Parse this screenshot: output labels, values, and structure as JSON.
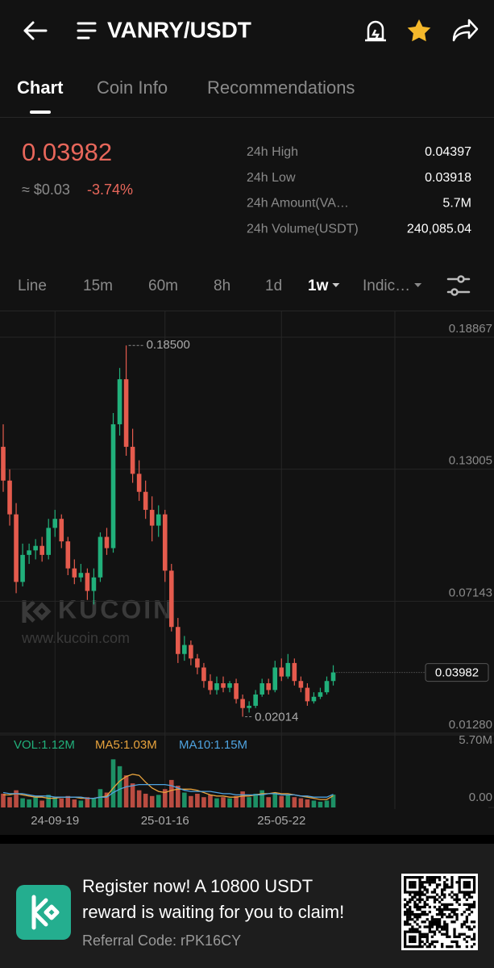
{
  "header": {
    "title": "VANRY/USDT"
  },
  "tabs": [
    "Chart",
    "Coin Info",
    "Recommendations"
  ],
  "price": {
    "last": 0.03982,
    "fiat": "≈ $0.03",
    "change": "-3.74%"
  },
  "stats": [
    {
      "label": "24h High",
      "value": "0.04397"
    },
    {
      "label": "24h Low",
      "value": "0.03918"
    },
    {
      "label": "24h Amount(VA…",
      "value": "5.7M"
    },
    {
      "label": "24h Volume(USDT)",
      "value": "240,085.04"
    }
  ],
  "timeframes": [
    "Line",
    "15m",
    "60m",
    "8h",
    "1d",
    "1w",
    "Indic…"
  ],
  "chart": {
    "type": "candlestick",
    "ylim": [
      0.0128,
      0.18867
    ],
    "yticks": [
      {
        "value": 0.0128,
        "label": "0.01280"
      },
      0.07143,
      0.13005,
      0.18867
    ],
    "xticks": [
      {
        "value": 8,
        "label": "24-09-19"
      },
      {
        "value": 25,
        "label": "25-01-16"
      },
      {
        "value": 43,
        "label": "25-05-22"
      }
    ],
    "up_color": "#21b07b",
    "down_color": "#e55b4d",
    "candles": [
      [
        0.14,
        0.15,
        0.12,
        0.125
      ],
      [
        0.125,
        0.13,
        0.105,
        0.11
      ],
      [
        0.11,
        0.115,
        0.075,
        0.08
      ],
      [
        0.08,
        0.097,
        0.078,
        0.092
      ],
      [
        0.092,
        0.097,
        0.088,
        0.094
      ],
      [
        0.094,
        0.099,
        0.09,
        0.096
      ],
      [
        0.096,
        0.1,
        0.089,
        0.092
      ],
      [
        0.092,
        0.108,
        0.09,
        0.104
      ],
      [
        0.104,
        0.112,
        0.1,
        0.108
      ],
      [
        0.108,
        0.11,
        0.095,
        0.098
      ],
      [
        0.098,
        0.1,
        0.083,
        0.086
      ],
      [
        0.086,
        0.09,
        0.079,
        0.082
      ],
      [
        0.082,
        0.088,
        0.08,
        0.084
      ],
      [
        0.084,
        0.086,
        0.072,
        0.076
      ],
      [
        0.076,
        0.086,
        0.07,
        0.082
      ],
      [
        0.082,
        0.102,
        0.08,
        0.1
      ],
      [
        0.1,
        0.104,
        0.092,
        0.095
      ],
      [
        0.095,
        0.155,
        0.093,
        0.15
      ],
      [
        0.15,
        0.175,
        0.145,
        0.17
      ],
      [
        0.17,
        0.185,
        0.136,
        0.14
      ],
      [
        0.14,
        0.148,
        0.124,
        0.128
      ],
      [
        0.128,
        0.134,
        0.116,
        0.12
      ],
      [
        0.12,
        0.125,
        0.108,
        0.112
      ],
      [
        0.112,
        0.118,
        0.098,
        0.105
      ],
      [
        0.105,
        0.114,
        0.1,
        0.11
      ],
      [
        0.11,
        0.112,
        0.08,
        0.085
      ],
      [
        0.085,
        0.088,
        0.058,
        0.06
      ],
      [
        0.06,
        0.064,
        0.044,
        0.048
      ],
      [
        0.048,
        0.056,
        0.045,
        0.052
      ],
      [
        0.052,
        0.054,
        0.043,
        0.046
      ],
      [
        0.046,
        0.048,
        0.039,
        0.042
      ],
      [
        0.042,
        0.044,
        0.033,
        0.036
      ],
      [
        0.036,
        0.039,
        0.03,
        0.032
      ],
      [
        0.032,
        0.038,
        0.03,
        0.035
      ],
      [
        0.035,
        0.038,
        0.031,
        0.033
      ],
      [
        0.033,
        0.036,
        0.031,
        0.035
      ],
      [
        0.035,
        0.037,
        0.026,
        0.028
      ],
      [
        0.028,
        0.03,
        0.02014,
        0.024
      ],
      [
        0.024,
        0.027,
        0.022,
        0.025
      ],
      [
        0.025,
        0.032,
        0.024,
        0.03
      ],
      [
        0.03,
        0.037,
        0.029,
        0.035
      ],
      [
        0.035,
        0.037,
        0.03,
        0.032
      ],
      [
        0.032,
        0.045,
        0.031,
        0.042
      ],
      [
        0.042,
        0.046,
        0.036,
        0.038
      ],
      [
        0.038,
        0.048,
        0.037,
        0.044
      ],
      [
        0.044,
        0.046,
        0.034,
        0.036
      ],
      [
        0.036,
        0.038,
        0.031,
        0.033
      ],
      [
        0.033,
        0.035,
        0.025,
        0.027
      ],
      [
        0.027,
        0.031,
        0.026,
        0.029
      ],
      [
        0.029,
        0.033,
        0.028,
        0.031
      ],
      [
        0.031,
        0.038,
        0.03,
        0.036
      ],
      [
        0.036,
        0.043,
        0.034,
        0.03982
      ]
    ],
    "high_marker": {
      "index": 19,
      "value": 0.185,
      "label": "0.18500"
    },
    "low_marker": {
      "index": 37,
      "value": 0.02014
    },
    "watermark": {
      "brand": "KUCOIN",
      "url": "www.kucoin.com"
    },
    "volume": {
      "legend": [
        {
          "text": "VOL:1.12M",
          "color": "#21b07b"
        },
        {
          "text": "MA5:1.03M",
          "color": "#e8a33d"
        },
        {
          "text": "MA10:1.15M",
          "color": "#4fa3e0"
        }
      ],
      "ylim": [
        0,
        5.7
      ],
      "yticks": [
        {
          "value": 5.7,
          "label": "5.70M"
        },
        {
          "value": 0,
          "label": "0.00"
        }
      ],
      "values": [
        1.2,
        0.9,
        1.5,
        0.8,
        0.7,
        0.9,
        0.6,
        1.1,
        0.9,
        0.8,
        1.0,
        0.7,
        0.6,
        0.9,
        0.8,
        1.6,
        1.3,
        4.2,
        3.6,
        2.8,
        2.1,
        1.5,
        1.2,
        1.0,
        1.1,
        1.6,
        2.4,
        1.9,
        1.3,
        1.0,
        1.2,
        0.9,
        1.1,
        0.8,
        0.9,
        0.8,
        1.0,
        1.4,
        0.9,
        1.2,
        1.5,
        0.9,
        1.3,
        1.0,
        1.1,
        0.9,
        0.8,
        0.7,
        0.6,
        0.5,
        0.6,
        1.12
      ],
      "ma5": [
        1.1,
        1.1,
        1.2,
        1.1,
        1.0,
        0.9,
        0.9,
        0.8,
        0.8,
        0.9,
        0.9,
        0.9,
        0.8,
        0.8,
        0.8,
        0.9,
        1.0,
        1.7,
        2.3,
        2.7,
        2.9,
        2.8,
        2.2,
        1.7,
        1.4,
        1.3,
        1.5,
        1.6,
        1.6,
        1.6,
        1.5,
        1.3,
        1.1,
        1.0,
        1.0,
        0.9,
        0.9,
        1.0,
        1.0,
        1.1,
        1.2,
        1.2,
        1.3,
        1.2,
        1.2,
        1.1,
        1.0,
        0.9,
        0.8,
        0.7,
        0.7,
        1.03
      ],
      "ma10": [
        1.3,
        1.2,
        1.2,
        1.2,
        1.1,
        1.0,
        1.0,
        1.0,
        0.9,
        0.9,
        0.9,
        0.9,
        0.9,
        0.8,
        0.8,
        0.9,
        0.9,
        1.3,
        1.6,
        1.8,
        1.9,
        2.0,
        2.0,
        2.0,
        2.0,
        2.0,
        1.9,
        1.7,
        1.5,
        1.4,
        1.4,
        1.4,
        1.4,
        1.3,
        1.2,
        1.2,
        1.1,
        1.1,
        1.1,
        1.1,
        1.1,
        1.2,
        1.2,
        1.1,
        1.1,
        1.1,
        1.0,
        1.0,
        0.9,
        0.9,
        0.9,
        1.15
      ]
    }
  },
  "footer": {
    "headline": [
      "Register now! A 10800 USDT",
      "reward is waiting for you to claim!"
    ],
    "referral": "Referral Code: rPK16CY"
  }
}
